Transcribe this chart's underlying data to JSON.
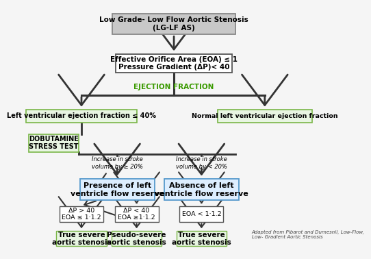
{
  "title": "Low Grade- Low Flow Aortic Stenosis\n(LG-LF AS)",
  "box1_text": "Effective Orifice Area (EOA) ≤ 1\nPressure Gradient (ΔP)< 40",
  "ejection_label": "EJECTION FRACTION",
  "box_left_ef": "Left ventricular ejection fraction ≤ 40%",
  "box_right_ef": "Normal left ventricular ejection fraction",
  "box_dobutamine": "DOBUTAMINE\nSTRESS TEST",
  "label_left_sv": "Increase in stroke\nvolume by ≥ 20%",
  "label_right_sv": "Increase in stroke\nvolume by < 20%",
  "box_presence": "Presence of left\nventricle flow reserve",
  "box_absence": "Absence of left\nventricle flow reserve",
  "box_dp40": "ΔP > 40\nEOA ≤ 1·1.2",
  "box_dp40_mid": "ΔP < 40\nEOA ≥1·1.2",
  "box_eoa": "EOA < 1·1.2",
  "box_true1": "True severe\naortic stenosis",
  "box_pseudo": "Pseudo-severe\naortic stenosis",
  "box_true2": "True severe\naortic stenosis",
  "footnote": "Adapted from Pibarot and Dumesnil, Low-Flow,\nLow- Gradient Aortic Stenosis",
  "bg_color": "#f5f5f5",
  "gray_box_fill": "#c8c8c8",
  "gray_box_edge": "#888888",
  "white_box_fill": "#ffffff",
  "white_box_edge": "#555555",
  "green_light_fill": "#e8f5e2",
  "green_light_edge": "#7ab648",
  "blue_box_fill": "#ddeeff",
  "blue_box_edge": "#5599cc",
  "ejection_color": "#3a9a00",
  "arrow_color": "#333333",
  "dark_arrow": "#333333"
}
